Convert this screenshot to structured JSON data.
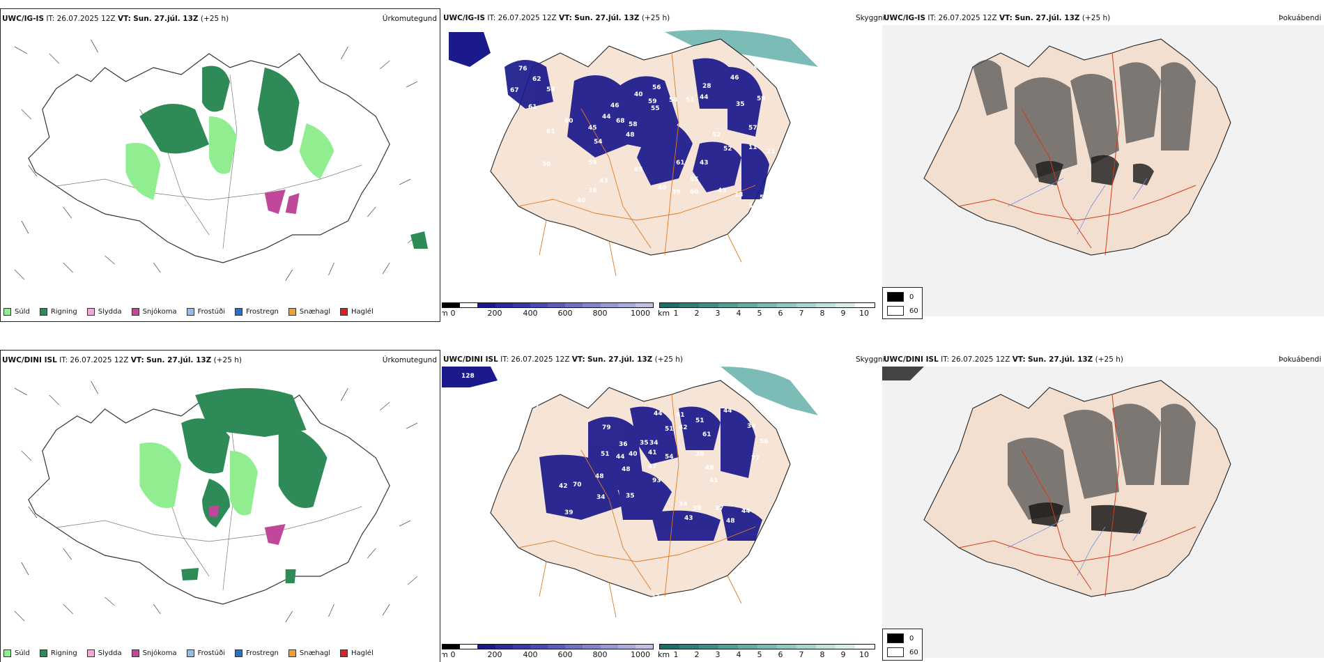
{
  "rows": [
    {
      "id": "igis",
      "model": "UWC/IG-IS",
      "it_label": "IT:",
      "it_value": "26.07.2025 12Z",
      "vt_label": "VT:",
      "vt_value": "Sun. 27.júl. 13Z",
      "lead": "(+25 h)",
      "panel1_title": "Úrkomutegund",
      "panel2_extra": "Skyggni",
      "panel3_title": "Þokuábendi",
      "height_labels": [
        "76",
        "62",
        "67",
        "54",
        "61",
        "60",
        "61",
        "50",
        "45",
        "54",
        "59",
        "38",
        "43",
        "40",
        "46",
        "44",
        "68",
        "58",
        "48",
        "40",
        "56",
        "59",
        "50",
        "51",
        "44",
        "28",
        "46",
        "68",
        "35",
        "59",
        "55",
        "57",
        "52",
        "43",
        "52",
        "11",
        "21",
        "65",
        "40",
        "61",
        "55",
        "39",
        "60",
        "43",
        "58",
        "50",
        "13",
        "57"
      ]
    },
    {
      "id": "dini",
      "model": "UWC/DINI ISL",
      "it_label": "IT:",
      "it_value": "26.07.2025 12Z",
      "vt_label": "VT:",
      "vt_value": "Sun. 27.júl. 13Z",
      "lead": "(+25 h)",
      "panel1_title": "Úrkomutegund",
      "panel2_extra": "Skyggni",
      "panel3_title": "Þokuábendi",
      "height_labels": [
        "128",
        "57",
        "79",
        "36",
        "35",
        "34",
        "44",
        "51",
        "42",
        "51",
        "61",
        "34",
        "44",
        "48",
        "40",
        "41",
        "47",
        "54",
        "38",
        "48",
        "56",
        "77",
        "13",
        "51",
        "48",
        "70",
        "42",
        "34",
        "35",
        "93",
        "34",
        "38",
        "43",
        "37",
        "41",
        "48",
        "44",
        "39",
        "61",
        "44",
        "32"
      ]
    }
  ],
  "precip_legend": [
    {
      "label": "Súld",
      "color": "#90ee90"
    },
    {
      "label": "Rigning",
      "color": "#2e8b57"
    },
    {
      "label": "Slydda",
      "color": "#f4a6d7"
    },
    {
      "label": "Snjókoma",
      "color": "#c0489a"
    },
    {
      "label": "Frostúði",
      "color": "#8fbfef"
    },
    {
      "label": "Frostregn",
      "color": "#2f6fbf"
    },
    {
      "label": "Snæhagl",
      "color": "#f0a030"
    },
    {
      "label": "Haglél",
      "color": "#e02020"
    }
  ],
  "cloudbase_bar": {
    "unit": "m",
    "ticks": [
      "0",
      "200",
      "400",
      "600",
      "800",
      "1000"
    ],
    "colors": [
      "#000000",
      "#ffffff",
      "#1a1a8c",
      "#2a2a9c",
      "#3838a8",
      "#4a4ab4",
      "#5c5cbc",
      "#7070c4",
      "#8484cc",
      "#9898d4",
      "#acacdc",
      "#c0c0e4"
    ]
  },
  "visibility_bar": {
    "unit": "km",
    "ticks": [
      "1",
      "2",
      "3",
      "4",
      "5",
      "6",
      "7",
      "8",
      "9",
      "10"
    ],
    "colors": [
      "#1a6f6a",
      "#2a7f78",
      "#3b8f86",
      "#4f9f95",
      "#63ada3",
      "#79bbb2",
      "#90c9c1",
      "#a8d6cf",
      "#c0e3de",
      "#d8efec",
      "#ffffff"
    ]
  },
  "fog_legend": [
    {
      "label": "0",
      "color": "#000000"
    },
    {
      "label": "60",
      "color": "#ffffff"
    }
  ]
}
